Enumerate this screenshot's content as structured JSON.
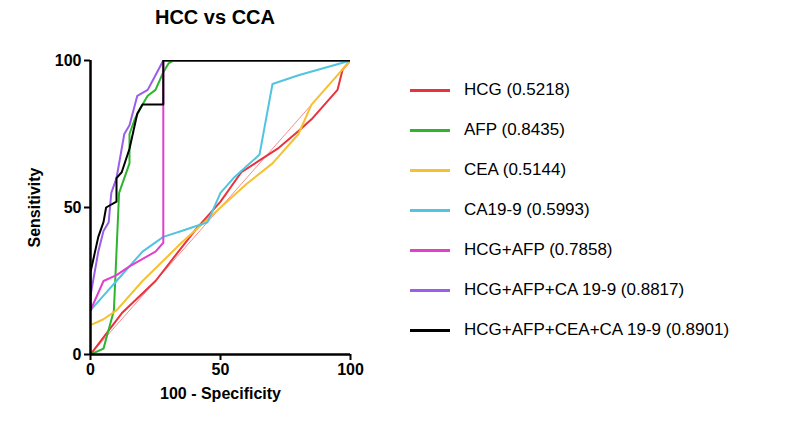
{
  "chart_data": {
    "type": "line",
    "title": "HCC vs CCA",
    "x_label": "100 - Specificity",
    "y_label": "Sensitivity",
    "xlim": [
      0,
      100
    ],
    "ylim": [
      0,
      100
    ],
    "xticks": [
      0,
      50,
      100
    ],
    "yticks": [
      0,
      50,
      100
    ],
    "grid": false,
    "legend": "right",
    "series": [
      {
        "name": "HCG (0.5218)",
        "color": "#e8333c",
        "x": [
          0,
          12,
          25,
          40,
          50,
          58,
          65,
          72,
          80,
          85,
          90,
          95,
          97,
          100
        ],
        "values": [
          0,
          14,
          25,
          42,
          52,
          62,
          66,
          70,
          76,
          80,
          85,
          90,
          97,
          100
        ]
      },
      {
        "name": "AFP (0.8435)",
        "color": "#2db52d",
        "x": [
          0,
          5,
          9,
          10,
          11,
          13,
          15,
          15,
          17,
          20,
          22,
          25,
          28,
          30,
          32,
          100
        ],
        "values": [
          0,
          2,
          15,
          35,
          55,
          60,
          65,
          75,
          80,
          85,
          88,
          90,
          96,
          99,
          100,
          100
        ]
      },
      {
        "name": "CEA (0.5144)",
        "color": "#f5c12e",
        "x": [
          0,
          5,
          10,
          20,
          35,
          50,
          60,
          70,
          80,
          85,
          95,
          100
        ],
        "values": [
          10,
          12,
          15,
          25,
          38,
          50,
          58,
          65,
          75,
          85,
          95,
          100
        ]
      },
      {
        "name": "CA19-9 (0.5993)",
        "color": "#52c3e0",
        "x": [
          0,
          5,
          10,
          20,
          28,
          35,
          45,
          50,
          55,
          65,
          70,
          80,
          100
        ],
        "values": [
          15,
          20,
          25,
          35,
          40,
          42,
          45,
          55,
          60,
          68,
          92,
          95,
          100
        ]
      },
      {
        "name": "HCG+AFP (0.7858)",
        "color": "#e040d0",
        "x": [
          0,
          5,
          10,
          15,
          25,
          28,
          28,
          100
        ],
        "values": [
          15,
          25,
          27,
          30,
          35,
          38,
          100,
          100
        ]
      },
      {
        "name": "HCG+AFP+CA 19-9 (0.8817)",
        "color": "#9a5ee8",
        "x": [
          0,
          3,
          5,
          7,
          8,
          10,
          13,
          15,
          18,
          22,
          25,
          28,
          100
        ],
        "values": [
          20,
          35,
          42,
          45,
          55,
          60,
          75,
          78,
          88,
          90,
          95,
          100,
          100
        ]
      },
      {
        "name": "HCG+AFP+CEA+CA 19-9 (0.8901)",
        "color": "#000000",
        "x": [
          0,
          0,
          3,
          5,
          6,
          10,
          10,
          12,
          15,
          18,
          20,
          28,
          28,
          100
        ],
        "values": [
          15,
          28,
          40,
          45,
          50,
          52,
          60,
          62,
          70,
          82,
          85,
          85,
          100,
          100
        ]
      }
    ]
  }
}
